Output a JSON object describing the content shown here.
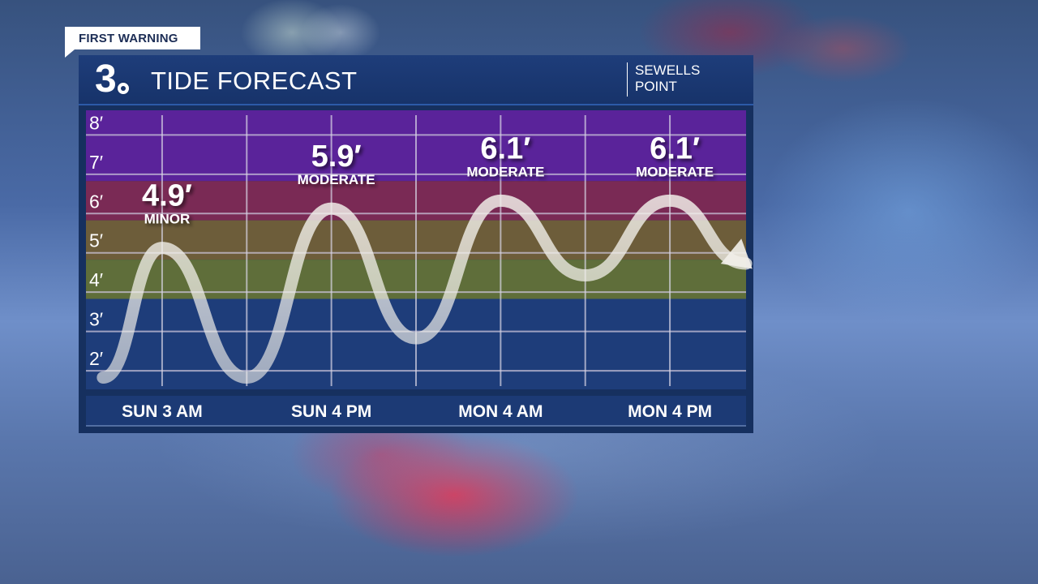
{
  "tag": {
    "label": "FIRST WARNING"
  },
  "header": {
    "logo_number": "3",
    "title": "TIDE FORECAST",
    "location_line1": "SEWELLS",
    "location_line2": "POINT"
  },
  "colors": {
    "flood_major": "#5a239a",
    "flood_moderate": "#7a2a55",
    "flood_minor_upper": "#6d5d3a",
    "flood_minor_lower": "#5f6e3a",
    "normal": "#1e3d7a",
    "curve": "#f2f0ea"
  },
  "chart_data": {
    "type": "line",
    "title": "TIDE FORECAST",
    "xlabel": "",
    "ylabel": "",
    "ylim": [
      1.3,
      8.4
    ],
    "y_ticks": [
      {
        "value": 8,
        "label": "8′"
      },
      {
        "value": 7,
        "label": "7′"
      },
      {
        "value": 6,
        "label": "6′"
      },
      {
        "value": 5,
        "label": "5′"
      },
      {
        "value": 4,
        "label": "4′"
      },
      {
        "value": 3,
        "label": "3′"
      },
      {
        "value": 2,
        "label": "2′"
      }
    ],
    "x_labels": [
      "SUN 3 AM",
      "SUN 4 PM",
      "MON 4 AM",
      "MON 4 PM"
    ],
    "x_range": [
      -0.9,
      6.9
    ],
    "x_gridlines": [
      0,
      1,
      2,
      3,
      4,
      5,
      6
    ],
    "x_label_positions": [
      0,
      2,
      4,
      6
    ],
    "bands": [
      {
        "name": "major",
        "from": 6.6,
        "to": 8.4
      },
      {
        "name": "moderate",
        "from": 5.6,
        "to": 6.6
      },
      {
        "name": "minor_upper",
        "from": 4.6,
        "to": 5.6
      },
      {
        "name": "minor_lower",
        "from": 3.6,
        "to": 4.6
      },
      {
        "name": "normal",
        "from": 1.3,
        "to": 3.6
      }
    ],
    "series": [
      {
        "points": [
          {
            "x": -0.7,
            "y": 1.6
          },
          {
            "x": 0.0,
            "y": 4.9
          },
          {
            "x": 1.0,
            "y": 1.6
          },
          {
            "x": 2.0,
            "y": 5.9
          },
          {
            "x": 3.0,
            "y": 2.6
          },
          {
            "x": 4.0,
            "y": 6.1
          },
          {
            "x": 5.0,
            "y": 4.2
          },
          {
            "x": 6.0,
            "y": 6.1
          },
          {
            "x": 6.9,
            "y": 4.5
          }
        ]
      }
    ],
    "annotations": [
      {
        "x": 0,
        "value": "4.9′",
        "category": "MINOR"
      },
      {
        "x": 2,
        "value": "5.9′",
        "category": "MODERATE"
      },
      {
        "x": 4,
        "value": "6.1′",
        "category": "MODERATE"
      },
      {
        "x": 6,
        "value": "6.1′",
        "category": "MODERATE"
      }
    ]
  }
}
